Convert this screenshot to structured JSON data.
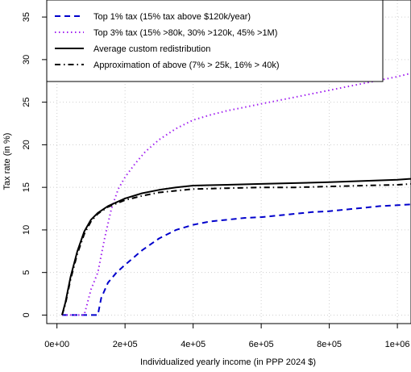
{
  "chart_data": {
    "type": "line",
    "xlabel": "Individualized yearly income (in PPP 2024 $)",
    "ylabel": "Tax rate (in %)",
    "xlim": [
      -30000,
      1040000
    ],
    "ylim": [
      -1,
      37
    ],
    "x_ticks": [
      0,
      200000,
      400000,
      600000,
      800000,
      1000000
    ],
    "x_tick_labels": [
      "0e+00",
      "2e+05",
      "4e+05",
      "6e+05",
      "8e+05",
      "1e+06"
    ],
    "y_ticks": [
      0,
      5,
      10,
      15,
      20,
      25,
      30,
      35
    ],
    "y_tick_labels": [
      "0",
      "5",
      "10",
      "15",
      "20",
      "25",
      "30",
      "35"
    ],
    "grid": true,
    "legend_placement": "top-left",
    "series": [
      {
        "name": "Top 1% tax (15% tax above $120k/year)",
        "color": "#0000cc",
        "dash": "dashed",
        "x": [
          15000,
          120000,
          130000,
          150000,
          175000,
          200000,
          250000,
          300000,
          350000,
          400000,
          450000,
          500000,
          550000,
          600000,
          650000,
          700000,
          750000,
          800000,
          850000,
          900000,
          950000,
          1000000,
          1040000
        ],
        "y": [
          0,
          0,
          2.0,
          3.8,
          5.0,
          5.9,
          7.6,
          9.0,
          10.0,
          10.6,
          11.0,
          11.2,
          11.4,
          11.5,
          11.7,
          11.9,
          12.1,
          12.2,
          12.4,
          12.6,
          12.8,
          12.9,
          13.0
        ]
      },
      {
        "name": "Top 3% tax (15% >80k, 30% >120k, 45% >1M)",
        "color": "#a020f0",
        "dash": "dotted",
        "x": [
          15000,
          80000,
          100000,
          120000,
          140000,
          160000,
          180000,
          200000,
          230000,
          260000,
          300000,
          350000,
          400000,
          450000,
          500000,
          550000,
          600000,
          650000,
          700000,
          750000,
          800000,
          850000,
          900000,
          950000,
          1000000,
          1040000
        ],
        "y": [
          0,
          0,
          3.0,
          5.0,
          9.0,
          12.5,
          14.8,
          16.2,
          17.8,
          19.2,
          20.6,
          21.9,
          22.9,
          23.5,
          24.0,
          24.4,
          24.8,
          25.2,
          25.6,
          26.0,
          26.4,
          26.8,
          27.2,
          27.6,
          28.0,
          28.4
        ]
      },
      {
        "name": "Average custom redistribution",
        "color": "#000000",
        "dash": "solid",
        "x": [
          15000,
          25000,
          40000,
          60000,
          80000,
          100000,
          120000,
          150000,
          200000,
          250000,
          300000,
          350000,
          400000,
          500000,
          600000,
          700000,
          800000,
          900000,
          1000000,
          1040000
        ],
        "y": [
          0,
          1.5,
          4.5,
          7.5,
          9.8,
          11.2,
          12.0,
          12.8,
          13.7,
          14.3,
          14.7,
          15.0,
          15.2,
          15.3,
          15.4,
          15.5,
          15.6,
          15.75,
          15.9,
          16.0
        ]
      },
      {
        "name": "Approximation of above (7% > 25k, 16% > 40k)",
        "color": "#000000",
        "dash": "dashdot",
        "x": [
          15000,
          25000,
          40000,
          60000,
          80000,
          100000,
          120000,
          150000,
          200000,
          250000,
          300000,
          350000,
          400000,
          500000,
          600000,
          700000,
          800000,
          900000,
          1000000,
          1040000
        ],
        "y": [
          0,
          1.3,
          4.2,
          7.2,
          9.5,
          11.0,
          11.9,
          12.7,
          13.5,
          14.0,
          14.4,
          14.6,
          14.8,
          14.9,
          15.0,
          15.0,
          15.1,
          15.2,
          15.3,
          15.4
        ]
      }
    ]
  }
}
